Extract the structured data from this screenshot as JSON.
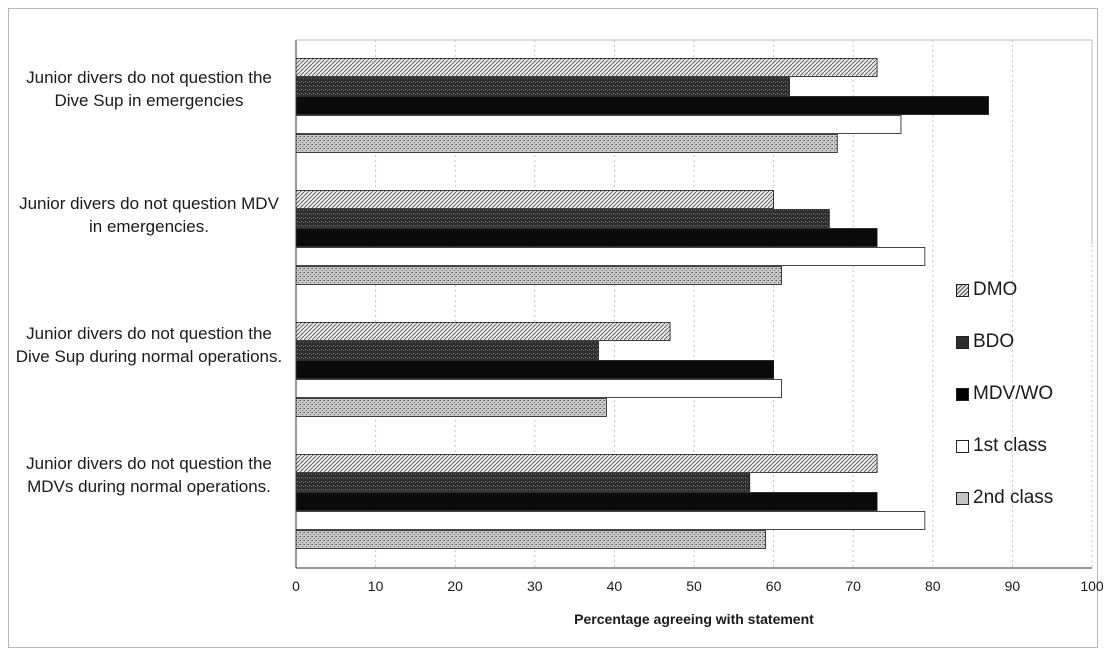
{
  "chart_data": {
    "type": "bar",
    "orientation": "horizontal",
    "categories": [
      "Junior divers do not question the Dive Sup in emergencies",
      "Junior divers do not question MDV in emergencies.",
      "Junior divers do not question the Dive Sup during normal operations.",
      "Junior divers do not question the MDVs during normal operations."
    ],
    "series": [
      {
        "name": "DMO",
        "values": [
          73,
          60,
          47,
          73
        ],
        "color": "#d9d9d9",
        "pattern": "diagonal-hatch"
      },
      {
        "name": "BDO",
        "values": [
          62,
          67,
          38,
          57
        ],
        "color": "#3a3a3a",
        "pattern": "dense-speckle"
      },
      {
        "name": "MDV/WO",
        "values": [
          87,
          73,
          60,
          73
        ],
        "color": "#0a0a0a",
        "pattern": "solid"
      },
      {
        "name": "1st class",
        "values": [
          76,
          79,
          61,
          79
        ],
        "color": "#ffffff",
        "pattern": "none"
      },
      {
        "name": "2nd class",
        "values": [
          68,
          61,
          39,
          59
        ],
        "color": "#a8a8a8",
        "pattern": "speckle"
      }
    ],
    "xlabel": "Percentage agreeing with statement",
    "xlim": [
      0,
      100
    ],
    "xticks": [
      "0",
      "10",
      "20",
      "30",
      "40",
      "50",
      "60",
      "70",
      "80",
      "90",
      "100"
    ],
    "grid": "vertical-dotted",
    "legend_position": "right"
  }
}
